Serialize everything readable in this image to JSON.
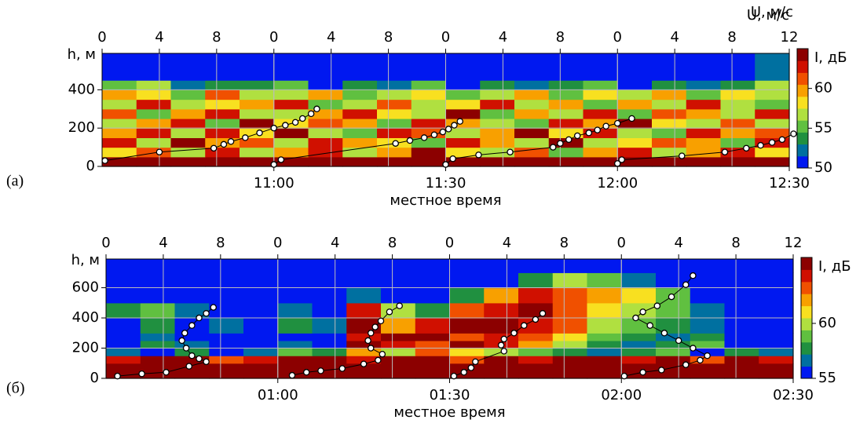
{
  "chart_data": [
    {
      "type": "heatmap",
      "panel_label": "(а)",
      "x_label": "местное время",
      "y_label": "h, м",
      "xlim": [
        630,
        750
      ],
      "xticks": [
        {
          "value": 660,
          "label": "11:00"
        },
        {
          "value": 690,
          "label": "11:30"
        },
        {
          "value": 720,
          "label": "12:00"
        },
        {
          "value": 750,
          "label": "12:30"
        }
      ],
      "ylim": [
        0,
        590
      ],
      "yticks": [
        0,
        200,
        400
      ],
      "grid": true,
      "heatmap": {
        "y_edges": [
          0,
          50,
          100,
          150,
          200,
          250,
          300,
          350,
          400,
          450,
          590
        ],
        "z": [
          [
            68,
            68,
            68,
            68,
            68,
            68,
            68,
            68,
            68,
            68,
            68,
            68,
            68,
            68,
            68,
            68,
            68,
            68,
            68,
            68
          ],
          [
            58,
            61,
            57,
            63,
            56,
            60,
            62,
            57,
            59,
            64,
            58,
            56,
            61,
            55,
            60,
            63,
            57,
            59,
            62,
            58
          ],
          [
            62,
            57,
            64,
            59,
            61,
            56,
            63,
            60,
            58,
            55,
            62,
            59,
            57,
            64,
            56,
            58,
            61,
            60,
            55,
            63
          ],
          [
            59,
            63,
            56,
            62,
            58,
            64,
            57,
            55,
            63,
            61,
            56,
            60,
            64,
            58,
            62,
            57,
            55,
            63,
            59,
            61
          ],
          [
            56,
            60,
            62,
            55,
            64,
            58,
            61,
            59,
            55,
            63,
            60,
            57,
            55,
            62,
            59,
            64,
            58,
            56,
            61,
            57
          ],
          [
            61,
            55,
            59,
            63,
            57,
            56,
            60,
            63,
            58,
            57,
            64,
            55,
            60,
            56,
            63,
            55,
            61,
            59,
            57,
            62
          ],
          [
            57,
            62,
            56,
            58,
            60,
            62,
            55,
            57,
            61,
            56,
            58,
            62,
            57,
            59,
            55,
            60,
            57,
            62,
            56,
            55
          ],
          [
            60,
            58,
            55,
            61,
            56,
            57,
            59,
            55,
            57,
            58,
            55,
            56,
            59,
            55,
            58,
            56,
            59,
            55,
            58,
            57
          ],
          [
            55,
            56,
            52,
            54,
            53,
            55,
            51,
            53,
            52,
            55,
            51,
            54,
            52,
            53,
            55,
            51,
            53,
            52,
            54,
            56
          ],
          [
            50,
            50,
            51,
            50,
            50,
            50,
            50,
            51,
            50,
            50,
            50,
            50,
            50,
            51,
            50,
            50,
            50,
            50,
            50,
            52
          ]
        ]
      },
      "colorbar": {
        "label": "I, дБ",
        "lim": [
          50,
          65
        ],
        "ticks": [
          50,
          55,
          60
        ],
        "colors": [
          "#0018f0",
          "#0070a0",
          "#209040",
          "#60c040",
          "#b0e040",
          "#f8e020",
          "#f8a000",
          "#f05000",
          "#d01000",
          "#8c0000"
        ]
      },
      "u_axis": {
        "label": "U, м/с",
        "lim": [
          0,
          12
        ],
        "ticks": [
          0,
          4,
          8,
          12
        ]
      },
      "profile_color": "#000000",
      "profiles": [
        {
          "t": 630,
          "u": [
            0.2,
            4,
            7.8,
            8.5,
            9,
            10,
            11,
            12,
            12.8,
            13.5,
            14,
            14.6,
            15
          ],
          "h": [
            30,
            75,
            95,
            115,
            130,
            150,
            175,
            200,
            215,
            230,
            250,
            275,
            300
          ]
        },
        {
          "t": 660,
          "u": [
            0,
            0.5,
            8.5,
            9.5,
            10.5,
            11.2,
            11.8,
            12.2,
            12.6,
            13
          ],
          "h": [
            10,
            35,
            120,
            135,
            150,
            165,
            180,
            195,
            215,
            235
          ]
        },
        {
          "t": 690,
          "u": [
            0,
            0.5,
            2.3,
            4.5,
            7.5,
            8,
            8.6,
            9.2,
            10,
            10.6,
            11.2,
            12,
            13
          ],
          "h": [
            10,
            40,
            60,
            75,
            100,
            120,
            140,
            160,
            175,
            190,
            210,
            225,
            250
          ]
        },
        {
          "t": 720,
          "u": [
            0,
            0.3,
            4.5,
            7.5,
            9,
            10,
            10.8,
            11.5,
            12.3
          ],
          "h": [
            15,
            35,
            55,
            75,
            95,
            110,
            125,
            140,
            170
          ]
        }
      ]
    },
    {
      "type": "heatmap",
      "panel_label": "(б)",
      "x_label": "местное время",
      "y_label": "h, м",
      "xlim": [
        30,
        150
      ],
      "xticks": [
        {
          "value": 60,
          "label": "01:00"
        },
        {
          "value": 90,
          "label": "01:30"
        },
        {
          "value": 120,
          "label": "02:00"
        },
        {
          "value": 150,
          "label": "02:30"
        }
      ],
      "ylim": [
        0,
        790
      ],
      "yticks": [
        0,
        200,
        400,
        600
      ],
      "grid": true,
      "heatmap": {
        "y_edges": [
          0,
          100,
          150,
          200,
          250,
          300,
          400,
          500,
          600,
          700,
          790
        ],
        "z": [
          [
            66,
            66,
            66,
            66,
            66,
            66,
            66,
            66,
            66,
            66,
            66,
            66,
            66,
            66,
            66,
            66,
            66,
            66,
            66,
            66
          ],
          [
            64,
            65,
            66,
            63,
            64,
            66,
            65,
            64,
            66,
            65,
            63,
            66,
            64,
            65,
            66,
            64,
            65,
            63,
            66,
            64
          ],
          [
            57,
            56,
            58,
            56,
            57,
            59,
            58,
            62,
            60,
            63,
            61,
            60,
            59,
            58,
            57,
            58,
            59,
            56,
            58,
            57
          ],
          [
            56,
            58,
            57,
            55,
            56,
            57,
            56,
            65,
            64,
            63,
            65,
            64,
            62,
            60,
            58,
            57,
            58,
            59,
            56,
            55
          ],
          [
            55,
            57,
            56,
            55,
            55,
            56,
            55,
            64,
            66,
            65,
            63,
            64,
            63,
            61,
            59,
            58,
            57,
            58,
            56,
            55
          ],
          [
            56,
            58,
            55,
            57,
            55,
            58,
            57,
            65,
            62,
            64,
            66,
            65,
            64,
            63,
            60,
            59,
            58,
            57,
            55,
            56
          ],
          [
            58,
            59,
            57,
            56,
            55,
            57,
            56,
            64,
            60,
            58,
            63,
            64,
            65,
            63,
            61,
            60,
            59,
            57,
            55,
            55
          ],
          [
            55,
            55,
            55,
            55,
            55,
            55,
            55,
            57,
            55,
            55,
            58,
            62,
            64,
            63,
            62,
            61,
            59,
            56,
            55,
            55
          ],
          [
            55,
            55,
            55,
            55,
            55,
            55,
            55,
            55,
            55,
            55,
            55,
            56,
            58,
            60,
            59,
            57,
            55,
            55,
            55,
            55
          ],
          [
            55,
            55,
            55,
            55,
            55,
            55,
            55,
            55,
            55,
            55,
            55,
            55,
            55,
            55,
            55,
            55,
            55,
            55,
            55,
            55
          ]
        ]
      },
      "colorbar": {
        "label": "I, дБ",
        "lim": [
          55,
          66
        ],
        "ticks": [
          55,
          60
        ],
        "colors": [
          "#0018f0",
          "#0070a0",
          "#209040",
          "#60c040",
          "#b0e040",
          "#f8e020",
          "#f8a000",
          "#f05000",
          "#d01000",
          "#8c0000"
        ]
      },
      "u_axis": {
        "label": "U, м/с",
        "lim": [
          0,
          12
        ],
        "ticks": [
          0,
          4,
          8,
          12
        ]
      },
      "profile_color": "#000000",
      "profiles": [
        {
          "t": 30,
          "u": [
            0.8,
            2.5,
            4.2,
            5.8,
            7,
            6.5,
            6,
            5.6,
            5.3,
            5.5,
            6,
            6.5,
            7,
            7.5
          ],
          "h": [
            15,
            30,
            40,
            80,
            110,
            130,
            150,
            200,
            250,
            300,
            350,
            400,
            430,
            470
          ]
        },
        {
          "t": 60,
          "u": [
            1,
            2,
            3,
            4.5,
            6,
            7,
            7.3,
            6.5,
            6.3,
            6.5,
            6.8,
            7.2,
            7.8,
            8.5
          ],
          "h": [
            20,
            40,
            50,
            65,
            95,
            120,
            160,
            200,
            250,
            300,
            340,
            380,
            440,
            480
          ]
        },
        {
          "t": 90,
          "u": [
            0.3,
            1,
            1.5,
            1.8,
            3.8,
            3.6,
            3.8,
            4.5,
            5.2,
            6,
            6.5
          ],
          "h": [
            15,
            40,
            70,
            110,
            180,
            220,
            260,
            300,
            350,
            390,
            430
          ]
        },
        {
          "t": 120,
          "u": [
            0.2,
            1.5,
            2.8,
            4.5,
            5.5,
            6,
            5,
            4,
            3,
            2,
            1,
            1.5,
            2.5,
            3.5,
            4.5,
            5
          ],
          "h": [
            15,
            40,
            55,
            90,
            120,
            150,
            200,
            250,
            300,
            350,
            400,
            440,
            480,
            540,
            620,
            680
          ]
        }
      ]
    }
  ]
}
